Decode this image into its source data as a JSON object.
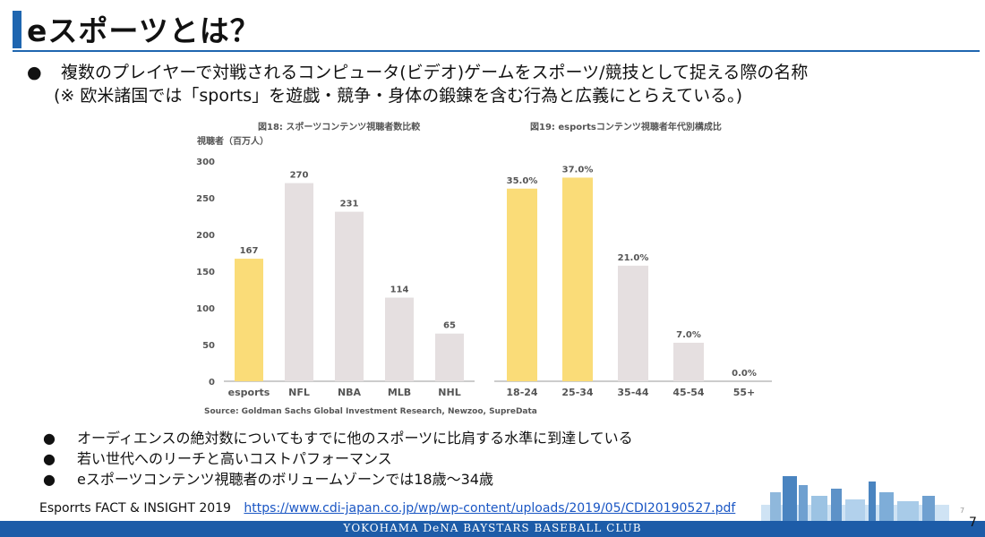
{
  "slide": {
    "title": "eスポーツとは？",
    "intro_bullet": "●",
    "intro_line1": "複数のプレイヤーで対戦されるコンピュータ(ビデオ)ゲームをスポーツ/競技として捉える際の名称",
    "intro_line2": "(※ 欧米諸国では「sports」を遊戯・競争・身体の鍛錬を含む行為と広義にとらえている。)",
    "bullets": [
      "オーディエンスの絶対数についてもすでに他のスポーツに比肩する水準に到達している",
      "若い世代へのリーチと高いコストパフォーマンス",
      "eスポーツコンテンツ視聴者のボリュームゾーンでは18歳～34歳"
    ],
    "bullet_symbol": "●",
    "reference_label": "Esporrts FACT & INSIGHT 2019",
    "reference_url": "https://www.cdi-japan.co.jp/wp/wp-content/uploads/2019/05/CDI20190527.pdf",
    "page_number": "7",
    "corner_number": "7",
    "footer_banner": "YOKOHAMA DeNA BAYSTARS BASEBALL CLUB",
    "colors": {
      "accent": "#1f66b0",
      "highlight_bar": "#fadc78",
      "other_bar": "#e5dfe0",
      "footer": "#1d5ca8"
    }
  },
  "chart_data": [
    {
      "type": "bar",
      "title": "図18: スポーツコンテンツ視聴者数比較",
      "ylabel": "視聴者（百万人）",
      "categories": [
        "esports",
        "NFL",
        "NBA",
        "MLB",
        "NHL"
      ],
      "values": [
        167,
        270,
        231,
        114,
        65
      ],
      "value_labels": [
        "167",
        "270",
        "231",
        "114",
        "65"
      ],
      "highlight": [
        true,
        false,
        false,
        false,
        false
      ],
      "ylim": [
        0,
        300
      ],
      "yticks": [
        0,
        50,
        100,
        150,
        200,
        250,
        300
      ],
      "grid": false
    },
    {
      "type": "bar",
      "title": "図19: esportsコンテンツ視聴者年代別構成比",
      "categories": [
        "18-24",
        "25-34",
        "35-44",
        "45-54",
        "55+"
      ],
      "values": [
        35.0,
        37.0,
        21.0,
        7.0,
        0.0
      ],
      "value_labels": [
        "35.0%",
        "37.0%",
        "21.0%",
        "7.0%",
        "0.0%"
      ],
      "highlight": [
        true,
        true,
        false,
        false,
        false
      ],
      "ylim": [
        0,
        40
      ],
      "grid": false
    }
  ],
  "chart_source": "Source: Goldman Sachs Global Investment Research, Newzoo, SupreData"
}
